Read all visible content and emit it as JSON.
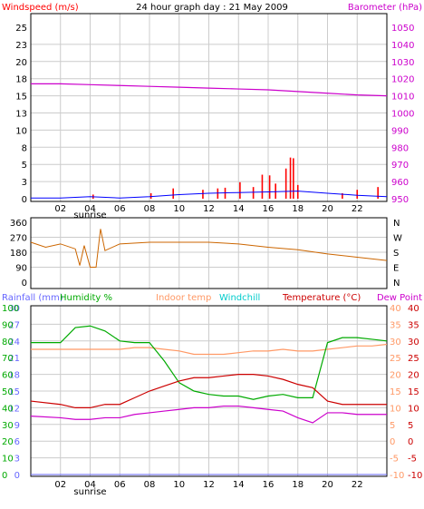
{
  "title": "24 hour graph day : 21 May 2009",
  "x_axis": {
    "ticks": [
      "02",
      "04",
      "06",
      "08",
      "10",
      "12",
      "14",
      "16",
      "18",
      "20",
      "22",
      " "
    ],
    "sunrise_label": "sunrise"
  },
  "panel1": {
    "left_label": "Windspeed (m/s)",
    "right_label": "Barometer (hPa)",
    "left_ticks": [
      "0",
      "3",
      "5",
      "8",
      "10",
      "13",
      "15",
      "18",
      "20",
      "23",
      "25"
    ],
    "right_ticks": [
      "950",
      "960",
      "970",
      "980",
      "990",
      "1000",
      "1010",
      "1020",
      "1030",
      "1040",
      "1050"
    ],
    "colors": {
      "gust": "#ff0000",
      "wind": "#0000ff",
      "barometer": "#cc00cc"
    }
  },
  "panel2": {
    "left_ticks": [
      "360",
      "270",
      "180",
      "90",
      "0"
    ],
    "right_labels": [
      "N",
      "W",
      "S",
      "E",
      "N"
    ],
    "colors": {
      "direction": "#cc6600"
    }
  },
  "panel3": {
    "labels": {
      "rainfall": "Rainfall (mm)",
      "humidity": "Humidity %",
      "indoor": "Indoor temp",
      "windchill": "Windchill",
      "temperature": "Temperature (°C)",
      "dewpoint": "Dew Point"
    },
    "rain_ticks": [
      "0",
      "3",
      "6",
      "9",
      "12",
      "15",
      "18",
      "21",
      "24",
      "27",
      "30"
    ],
    "humidity_ticks": [
      "0",
      "10",
      "20",
      "30",
      "40",
      "50",
      "60",
      "70",
      "80",
      "90",
      "100"
    ],
    "temp_ticks": [
      "-10",
      "-5",
      "0",
      "5",
      "10",
      "15",
      "20",
      "25",
      "30",
      "35",
      "40"
    ],
    "colors": {
      "rainfall": "#6666ff",
      "humidity": "#00aa00",
      "indoor": "#ff9966",
      "windchill": "#00cccc",
      "temperature": "#cc0000",
      "dewpoint": "#cc00cc"
    }
  },
  "chart_data": [
    {
      "type": "line",
      "title": "24 hour graph day : 21 May 2009",
      "x_hours": [
        0,
        2,
        4,
        6,
        8,
        10,
        12,
        14,
        16,
        18,
        20,
        22,
        24
      ],
      "series": [
        {
          "name": "Barometer (hPa)",
          "values": [
            1017,
            1017,
            1016.5,
            1016,
            1015.5,
            1015,
            1014.5,
            1014,
            1013.5,
            1012.5,
            1011.5,
            1010.5,
            1010
          ]
        },
        {
          "name": "Windspeed (m/s)",
          "values": [
            0.1,
            0.1,
            0.3,
            0.1,
            0.3,
            0.6,
            0.8,
            0.9,
            1.0,
            1.1,
            0.8,
            0.5,
            0.3
          ]
        }
      ],
      "gust_events": [
        [
          4.2,
          0.6
        ],
        [
          8.1,
          0.8
        ],
        [
          9.6,
          1.5
        ],
        [
          11.6,
          1.3
        ],
        [
          12.6,
          1.5
        ],
        [
          13.1,
          1.6
        ],
        [
          14.1,
          2.4
        ],
        [
          15.0,
          1.7
        ],
        [
          15.6,
          3.5
        ],
        [
          16.1,
          3.4
        ],
        [
          16.5,
          2.2
        ],
        [
          17.2,
          4.4
        ],
        [
          17.5,
          6.0
        ],
        [
          17.7,
          5.9
        ],
        [
          18.0,
          2.0
        ],
        [
          21.0,
          0.8
        ],
        [
          22.0,
          1.3
        ],
        [
          23.4,
          1.7
        ]
      ],
      "ylim_left": [
        0,
        25
      ],
      "ylim_right": [
        950,
        1050
      ]
    },
    {
      "type": "line",
      "x_hours": [
        0,
        1,
        2,
        3,
        3.3,
        3.6,
        4,
        4.4,
        4.7,
        5,
        6,
        8,
        10,
        12,
        14,
        16,
        18,
        20,
        22,
        24
      ],
      "series": [
        {
          "name": "Wind direction",
          "values": [
            240,
            210,
            230,
            200,
            100,
            220,
            90,
            90,
            320,
            190,
            230,
            240,
            240,
            240,
            230,
            210,
            195,
            170,
            150,
            130
          ]
        }
      ],
      "ylim": [
        0,
        360
      ]
    },
    {
      "type": "line",
      "x_hours": [
        0,
        2,
        3,
        4,
        5,
        6,
        7,
        8,
        9,
        10,
        11,
        12,
        13,
        14,
        15,
        16,
        17,
        18,
        19,
        20,
        21,
        22,
        23,
        24
      ],
      "series": [
        {
          "name": "Humidity %",
          "values": [
            79,
            79,
            88,
            89,
            86,
            80,
            79,
            79,
            68,
            55,
            50,
            48,
            47,
            47,
            45,
            47,
            48,
            46,
            46,
            79,
            82,
            82,
            81,
            80
          ]
        },
        {
          "name": "Indoor temp",
          "values": [
            27.5,
            27.5,
            27.5,
            27.5,
            27.5,
            27.5,
            28,
            28,
            27.5,
            27,
            26,
            26,
            26,
            26.5,
            27,
            27,
            27.5,
            27,
            27,
            27.5,
            28,
            28.5,
            28.5,
            29
          ]
        },
        {
          "name": "Temperature (°C)",
          "values": [
            12,
            11,
            10,
            10,
            11,
            11,
            13,
            15,
            16.5,
            18,
            19,
            19,
            19.5,
            20,
            20,
            19.5,
            18.5,
            17,
            16,
            12,
            11,
            11,
            11,
            11
          ]
        },
        {
          "name": "Dew Point",
          "values": [
            7.5,
            7,
            6.5,
            6.5,
            7,
            7,
            8,
            8.5,
            9,
            9.5,
            10,
            10,
            10.5,
            10.5,
            10,
            9.5,
            9,
            7,
            5.5,
            8.5,
            8.5,
            8,
            8,
            8
          ]
        }
      ],
      "rainfall_total": 0,
      "ylim_rain": [
        0,
        30
      ],
      "ylim_humidity": [
        0,
        100
      ],
      "ylim_temp": [
        -10,
        40
      ]
    }
  ]
}
